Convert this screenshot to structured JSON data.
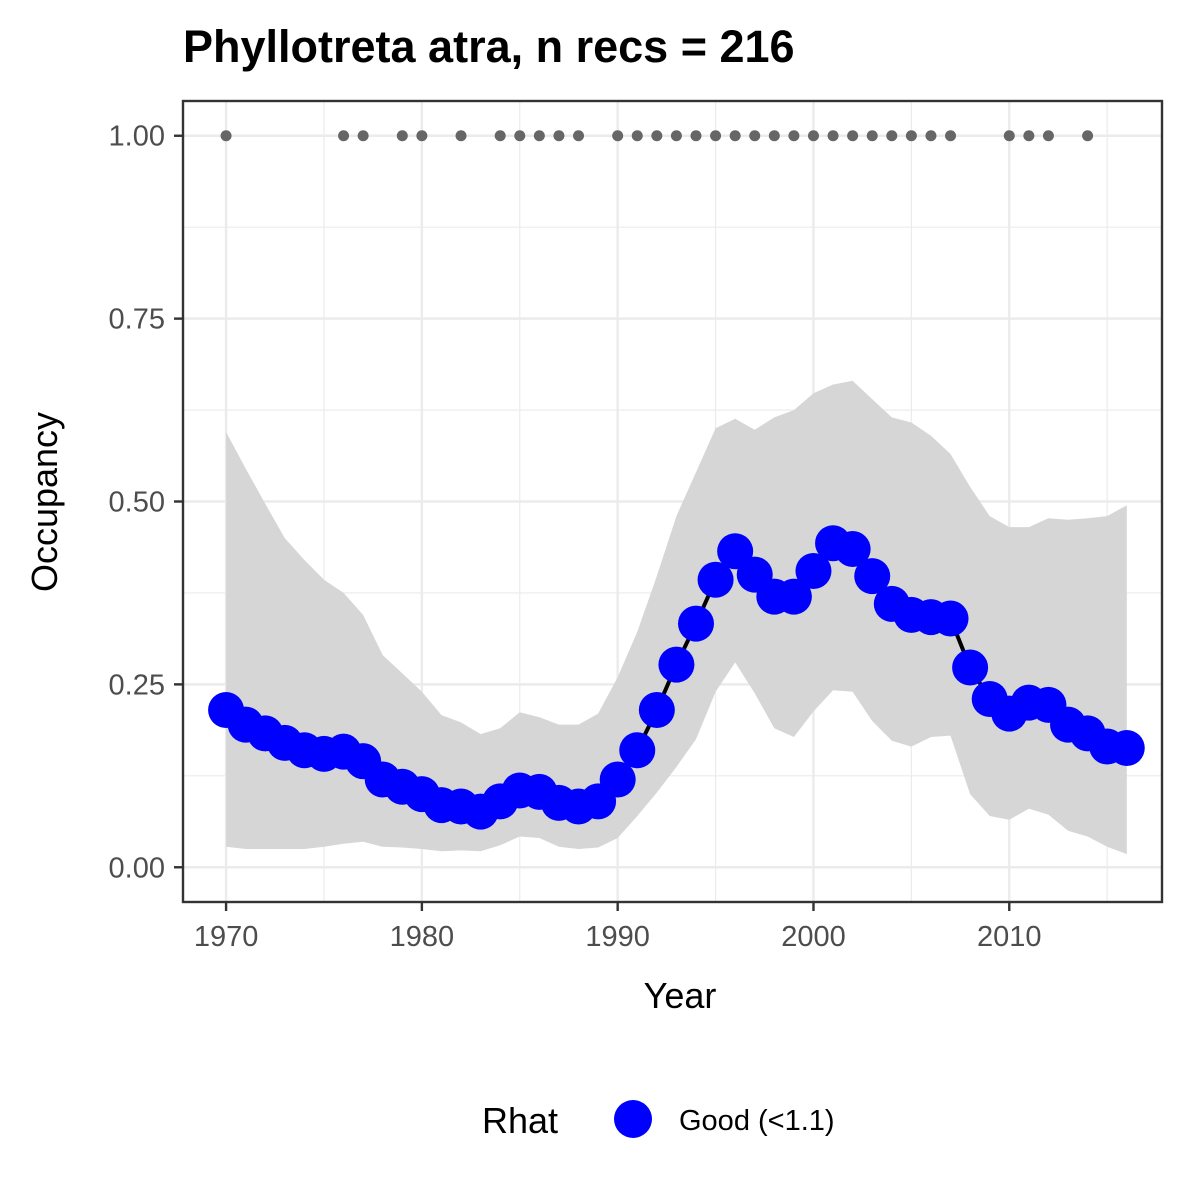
{
  "chart_data": {
    "type": "line",
    "title": "Phyllotreta atra, n recs = 216",
    "xlabel": "Year",
    "ylabel": "Occupancy",
    "xlim": [
      1967.8,
      2017.8
    ],
    "ylim": [
      -0.0475,
      1.0475
    ],
    "x_ticks": [
      1970,
      1980,
      1990,
      2000,
      2010
    ],
    "x_tick_labels": [
      "1970",
      "1980",
      "1990",
      "2000",
      "2010"
    ],
    "y_ticks": [
      0,
      0.25,
      0.5,
      0.75,
      1
    ],
    "y_tick_labels": [
      "0.00",
      "0.25",
      "0.50",
      "0.75",
      "1.00"
    ],
    "grid": true,
    "legend": {
      "title": "Rhat",
      "position": "bottom",
      "entries": [
        {
          "label": "Good (<1.1)",
          "color": "#0000ff"
        }
      ]
    },
    "colors": {
      "points": "#0000ff",
      "line": "#000000",
      "ribbon": "#d6d6d6",
      "records": "#666666",
      "panel_border": "#333333",
      "grid": "#ebebeb"
    },
    "x": [
      1970,
      1971,
      1972,
      1973,
      1974,
      1975,
      1976,
      1977,
      1978,
      1979,
      1980,
      1981,
      1982,
      1983,
      1984,
      1985,
      1986,
      1987,
      1988,
      1989,
      1990,
      1991,
      1992,
      1993,
      1994,
      1995,
      1996,
      1997,
      1998,
      1999,
      2000,
      2001,
      2002,
      2003,
      2004,
      2005,
      2006,
      2007,
      2008,
      2009,
      2010,
      2011,
      2012,
      2013,
      2014,
      2015,
      2016
    ],
    "series": [
      {
        "values": [
          0.215,
          0.195,
          0.183,
          0.17,
          0.16,
          0.155,
          0.158,
          0.145,
          0.12,
          0.11,
          0.1,
          0.085,
          0.083,
          0.076,
          0.09,
          0.105,
          0.103,
          0.088,
          0.083,
          0.09,
          0.12,
          0.16,
          0.215,
          0.277,
          0.333,
          0.393,
          0.432,
          0.4,
          0.37,
          0.37,
          0.405,
          0.443,
          0.435,
          0.398,
          0.36,
          0.345,
          0.342,
          0.34,
          0.273,
          0.23,
          0.21,
          0.225,
          0.222,
          0.195,
          0.183,
          0.165,
          0.163
        ],
        "lower": [
          0.028,
          0.025,
          0.025,
          0.025,
          0.025,
          0.028,
          0.032,
          0.035,
          0.028,
          0.027,
          0.025,
          0.022,
          0.023,
          0.022,
          0.03,
          0.042,
          0.04,
          0.028,
          0.025,
          0.027,
          0.04,
          0.07,
          0.102,
          0.137,
          0.175,
          0.24,
          0.28,
          0.238,
          0.19,
          0.178,
          0.213,
          0.242,
          0.24,
          0.2,
          0.173,
          0.165,
          0.178,
          0.18,
          0.1,
          0.07,
          0.065,
          0.08,
          0.072,
          0.05,
          0.042,
          0.028,
          0.018
        ],
        "upper": [
          0.595,
          0.545,
          0.497,
          0.45,
          0.42,
          0.393,
          0.375,
          0.345,
          0.29,
          0.265,
          0.24,
          0.208,
          0.198,
          0.182,
          0.19,
          0.212,
          0.205,
          0.195,
          0.195,
          0.21,
          0.26,
          0.322,
          0.398,
          0.48,
          0.54,
          0.6,
          0.613,
          0.598,
          0.615,
          0.625,
          0.648,
          0.66,
          0.665,
          0.64,
          0.615,
          0.608,
          0.59,
          0.565,
          0.52,
          0.48,
          0.465,
          0.465,
          0.477,
          0.475,
          0.477,
          0.48,
          0.495
        ]
      }
    ],
    "record_years": [
      1970,
      1976,
      1977,
      1979,
      1980,
      1982,
      1984,
      1985,
      1986,
      1987,
      1988,
      1990,
      1991,
      1992,
      1993,
      1994,
      1995,
      1996,
      1997,
      1998,
      1999,
      2000,
      2001,
      2002,
      2003,
      2004,
      2005,
      2006,
      2007,
      2010,
      2011,
      2012,
      2014
    ],
    "record_y": 1.0
  }
}
